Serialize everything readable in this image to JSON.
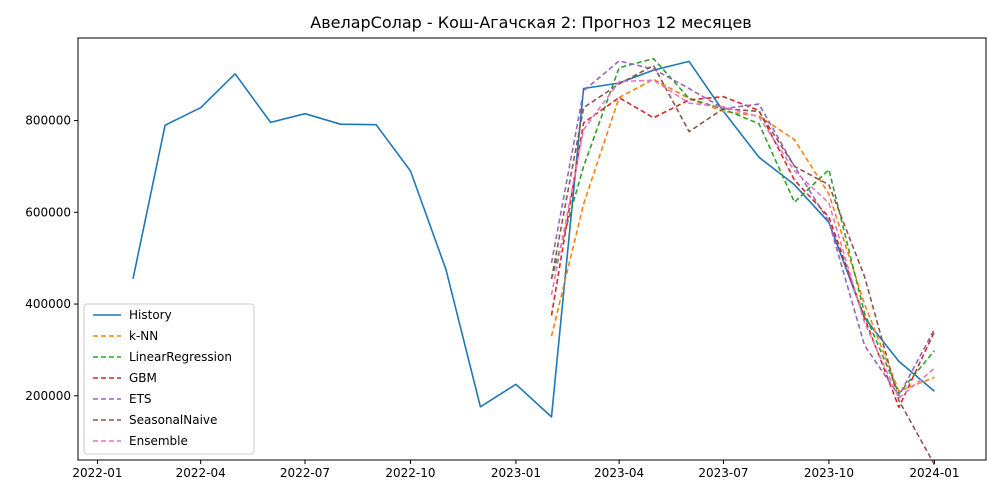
{
  "chart_data": {
    "type": "line",
    "title": "АвеларСолар - Кош-Агачская 2: Прогноз 12 месяцев",
    "xlabel": "",
    "ylabel": "",
    "x_range": [
      "2021-12-15",
      "2024-02-15"
    ],
    "ylim": [
      60000,
      980000
    ],
    "x_ticks": [
      {
        "date": "2022-01-01",
        "label": "2022-01"
      },
      {
        "date": "2022-04-01",
        "label": "2022-04"
      },
      {
        "date": "2022-07-01",
        "label": "2022-07"
      },
      {
        "date": "2022-10-01",
        "label": "2022-10"
      },
      {
        "date": "2023-01-01",
        "label": "2023-01"
      },
      {
        "date": "2023-04-01",
        "label": "2023-04"
      },
      {
        "date": "2023-07-01",
        "label": "2023-07"
      },
      {
        "date": "2023-10-01",
        "label": "2023-10"
      },
      {
        "date": "2024-01-01",
        "label": "2024-01"
      }
    ],
    "y_ticks": [
      {
        "value": 200000,
        "label": "200000"
      },
      {
        "value": 400000,
        "label": "400000"
      },
      {
        "value": 600000,
        "label": "600000"
      },
      {
        "value": 800000,
        "label": "800000"
      }
    ],
    "grid": false,
    "legend_position": "lower-left",
    "series": [
      {
        "name": "History",
        "color": "#1f77b4",
        "dashed": false,
        "x": [
          "2022-02-01",
          "2022-03-01",
          "2022-04-01",
          "2022-05-01",
          "2022-06-01",
          "2022-07-01",
          "2022-08-01",
          "2022-09-01",
          "2022-10-01",
          "2022-11-01",
          "2022-12-01",
          "2023-01-01",
          "2023-02-01",
          "2023-03-01",
          "2023-04-01",
          "2023-05-01",
          "2023-06-01",
          "2023-07-01",
          "2023-08-01",
          "2023-09-01",
          "2023-10-01",
          "2023-11-01",
          "2023-12-01",
          "2024-01-01"
        ],
        "y": [
          455000,
          790000,
          828000,
          902000,
          796000,
          815000,
          792000,
          791000,
          690000,
          475000,
          176000,
          225000,
          154000,
          870000,
          882000,
          910000,
          929000,
          820000,
          720000,
          660000,
          578000,
          370000,
          275000,
          210000
        ]
      },
      {
        "name": "k-NN",
        "color": "#ff7f0e",
        "dashed": true,
        "x": [
          "2023-02-01",
          "2023-03-01",
          "2023-04-01",
          "2023-05-01",
          "2023-06-01",
          "2023-07-01",
          "2023-08-01",
          "2023-09-01",
          "2023-10-01",
          "2023-11-01",
          "2023-12-01",
          "2024-01-01"
        ],
        "y": [
          330000,
          618000,
          850000,
          890000,
          848000,
          820000,
          810000,
          758000,
          640000,
          400000,
          210000,
          240000
        ]
      },
      {
        "name": "LinearRegression",
        "color": "#2ca02c",
        "dashed": true,
        "x": [
          "2023-02-01",
          "2023-03-01",
          "2023-04-01",
          "2023-05-01",
          "2023-06-01",
          "2023-07-01",
          "2023-08-01",
          "2023-09-01",
          "2023-10-01",
          "2023-11-01",
          "2023-12-01",
          "2024-01-01"
        ],
        "y": [
          455000,
          700000,
          915000,
          935000,
          848000,
          825000,
          793000,
          622000,
          693000,
          380000,
          205000,
          298000
        ]
      },
      {
        "name": "GBM",
        "color": "#d62728",
        "dashed": true,
        "x": [
          "2023-02-01",
          "2023-03-01",
          "2023-04-01",
          "2023-05-01",
          "2023-06-01",
          "2023-07-01",
          "2023-08-01",
          "2023-09-01",
          "2023-10-01",
          "2023-11-01",
          "2023-12-01",
          "2024-01-01"
        ],
        "y": [
          375000,
          795000,
          850000,
          806000,
          845000,
          852000,
          822000,
          670000,
          590000,
          370000,
          175000,
          340000
        ]
      },
      {
        "name": "ETS",
        "color": "#9467bd",
        "dashed": true,
        "x": [
          "2023-02-01",
          "2023-03-01",
          "2023-04-01",
          "2023-05-01",
          "2023-06-01",
          "2023-07-01",
          "2023-08-01",
          "2023-09-01",
          "2023-10-01",
          "2023-11-01",
          "2023-12-01",
          "2024-01-01"
        ],
        "y": [
          490000,
          865000,
          930000,
          912000,
          870000,
          826000,
          836000,
          700000,
          580000,
          310000,
          200000,
          345000
        ]
      },
      {
        "name": "SeasonalNaive",
        "color": "#8c564b",
        "dashed": true,
        "x": [
          "2023-02-01",
          "2023-03-01",
          "2023-04-01",
          "2023-05-01",
          "2023-06-01",
          "2023-07-01",
          "2023-08-01",
          "2023-09-01",
          "2023-10-01",
          "2023-11-01",
          "2023-12-01",
          "2024-01-01"
        ],
        "y": [
          455000,
          828000,
          880000,
          920000,
          776000,
          826000,
          820000,
          700000,
          660000,
          460000,
          190000,
          50000
        ]
      },
      {
        "name": "Ensemble",
        "color": "#e377c2",
        "dashed": true,
        "x": [
          "2023-02-01",
          "2023-03-01",
          "2023-04-01",
          "2023-05-01",
          "2023-06-01",
          "2023-07-01",
          "2023-08-01",
          "2023-09-01",
          "2023-10-01",
          "2023-11-01",
          "2023-12-01",
          "2024-01-01"
        ],
        "y": [
          420000,
          780000,
          885000,
          888000,
          838000,
          830000,
          808000,
          690000,
          620000,
          360000,
          195000,
          260000
        ]
      }
    ]
  }
}
